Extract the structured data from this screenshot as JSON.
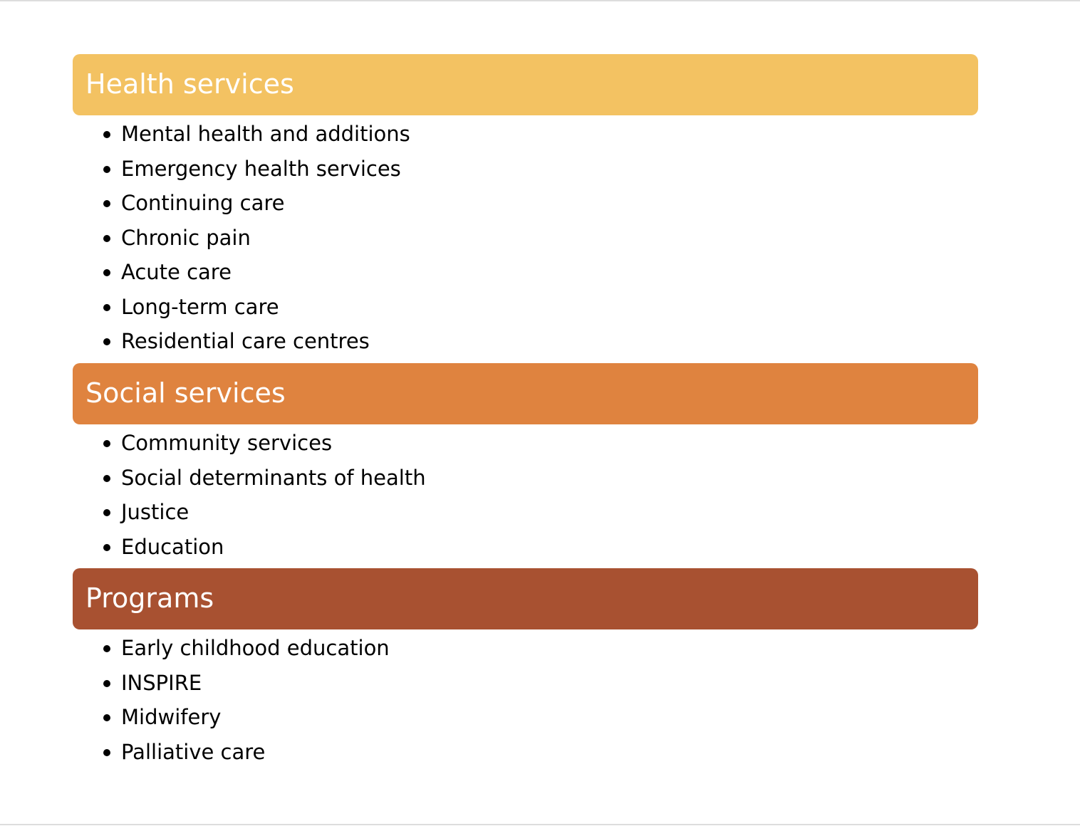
{
  "sections": [
    {
      "title": "Health services",
      "items": [
        "Mental health and additions",
        "Emergency health services",
        "Continuing care",
        "Chronic pain",
        "Acute care",
        "Long-term care",
        "Residential care centres"
      ]
    },
    {
      "title": "Social services",
      "items": [
        "Community services",
        "Social determinants of health",
        "Justice",
        "Education"
      ]
    },
    {
      "title": "Programs",
      "items": [
        "Early childhood education",
        "INSPIRE",
        "Midwifery",
        "Palliative care"
      ]
    }
  ]
}
